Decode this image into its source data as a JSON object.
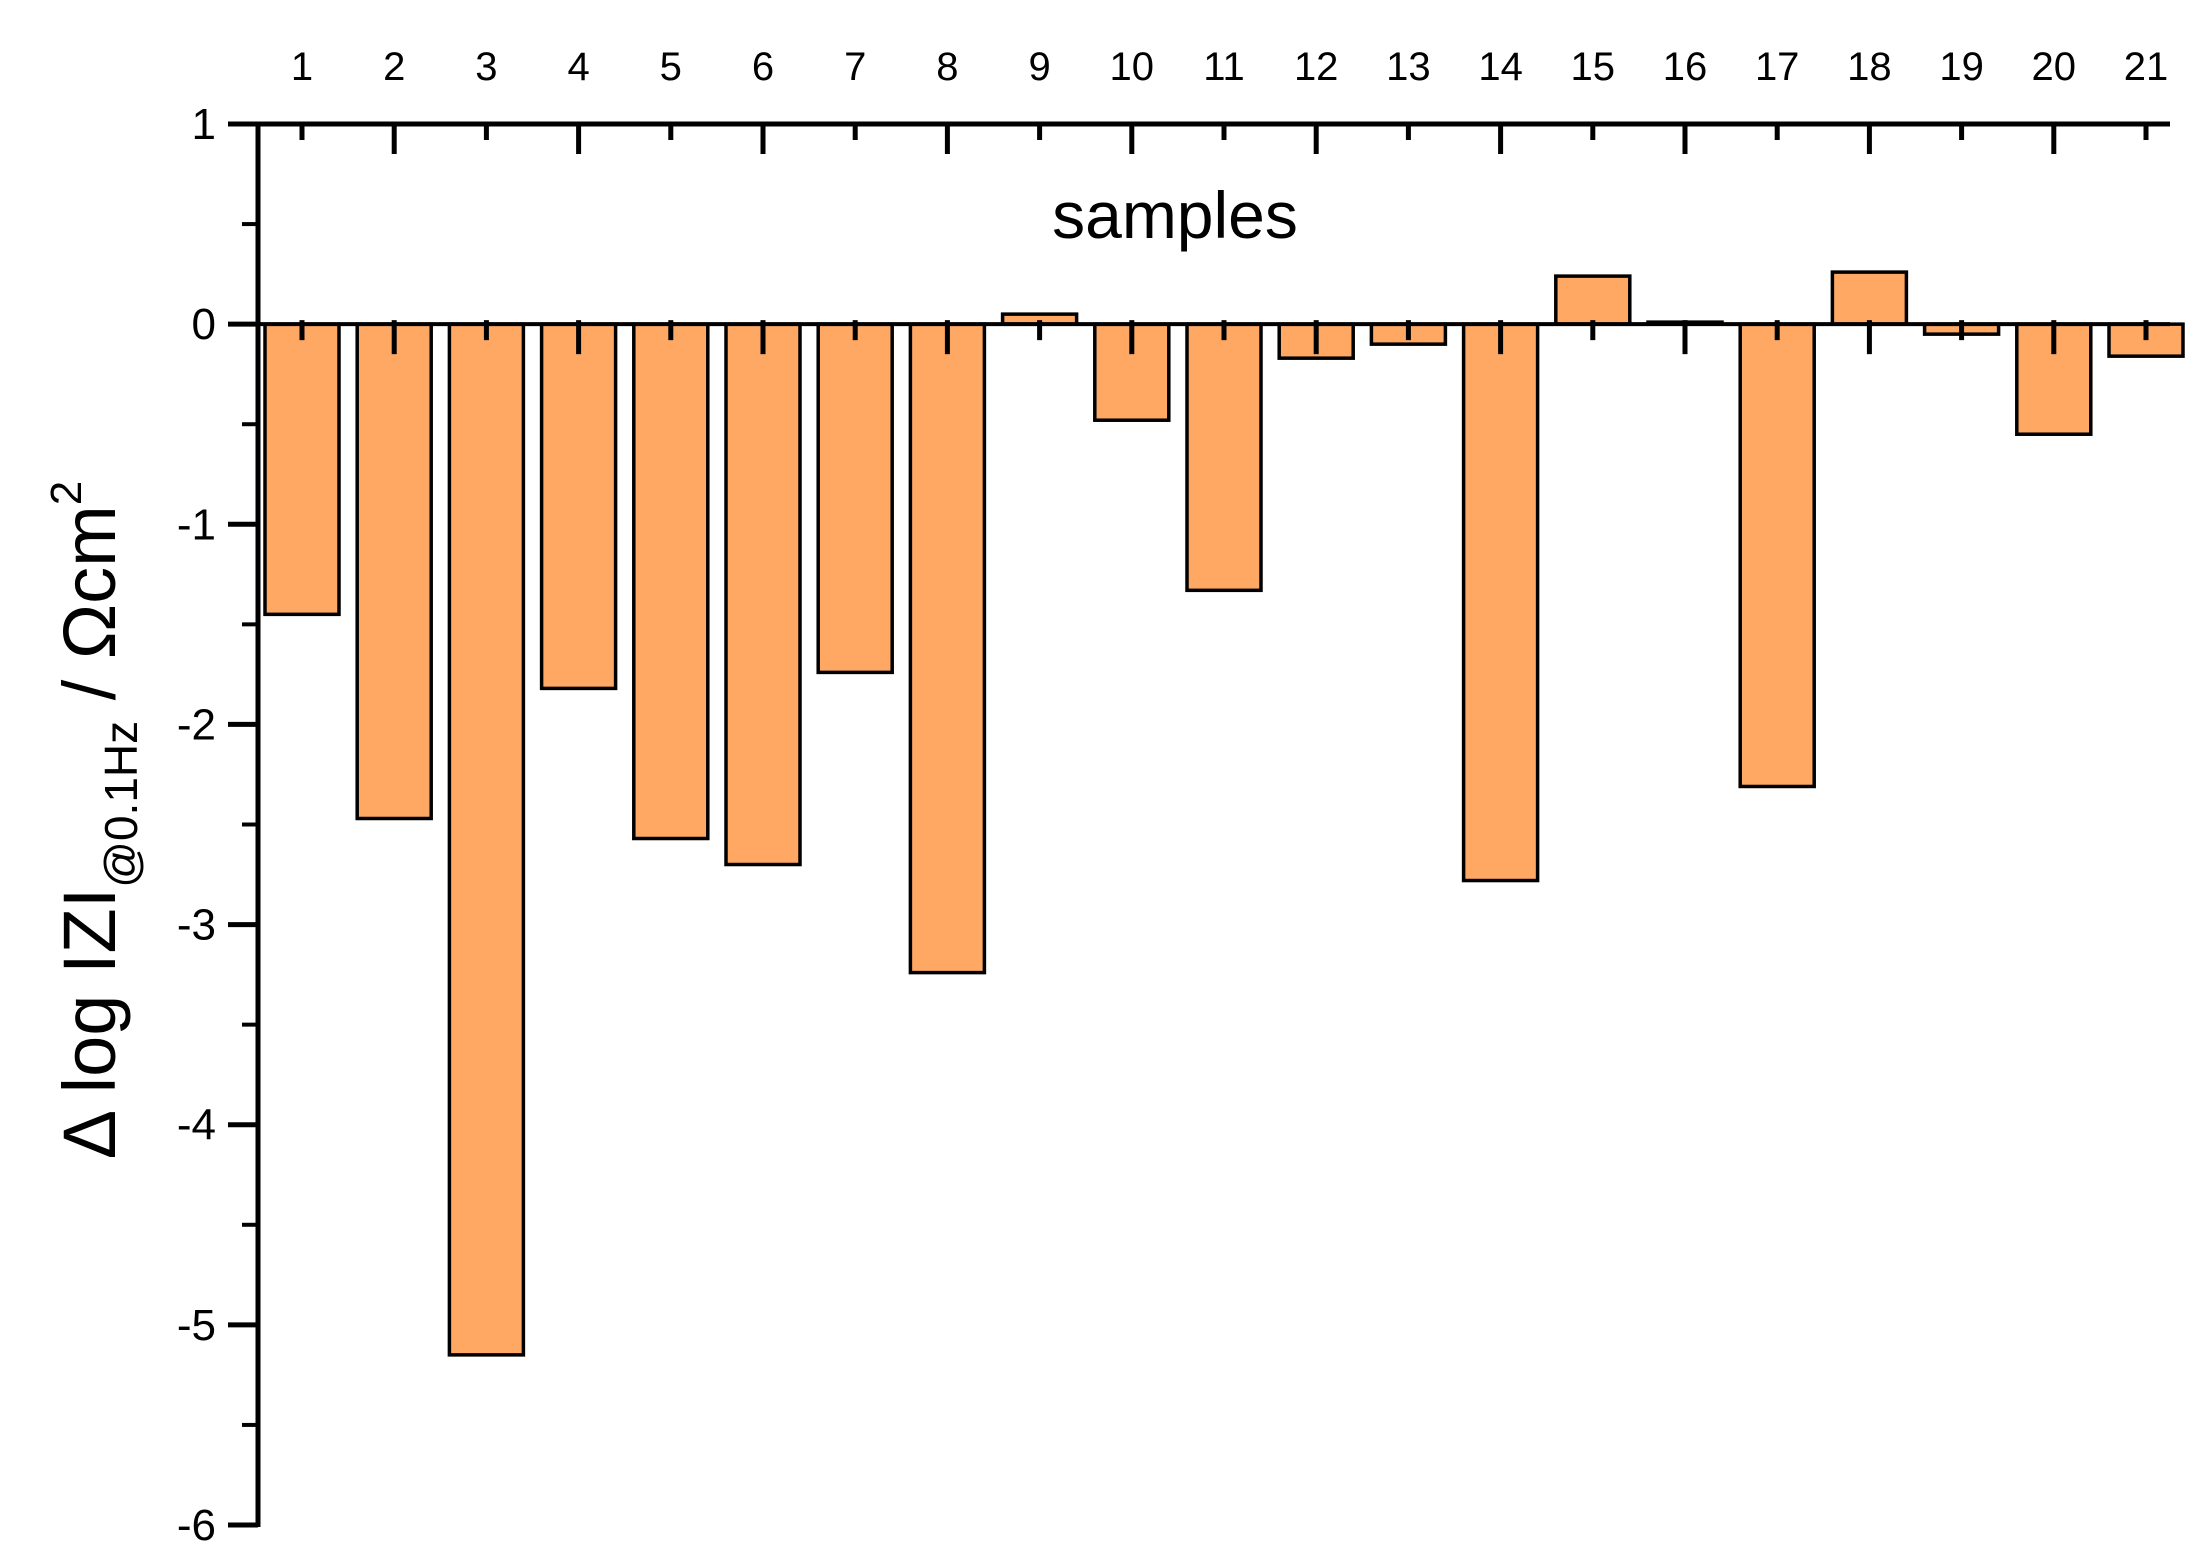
{
  "chart_data": {
    "type": "bar",
    "title": "",
    "xlabel": "samples",
    "ylabel": {
      "main": "Δ log IZI",
      "subscript": "@0.1Hz",
      "unit": " / Ωcm",
      "superscript": "2"
    },
    "categories": [
      "1",
      "2",
      "3",
      "4",
      "5",
      "6",
      "7",
      "8",
      "9",
      "10",
      "11",
      "12",
      "13",
      "14",
      "15",
      "16",
      "17",
      "18",
      "19",
      "20",
      "21"
    ],
    "values": [
      -1.45,
      -2.47,
      -5.15,
      -1.82,
      -2.57,
      -2.7,
      -1.74,
      -3.24,
      0.05,
      -0.48,
      -1.33,
      -0.17,
      -0.1,
      -2.78,
      0.24,
      0.01,
      -2.31,
      0.26,
      -0.05,
      -0.55,
      -0.16
    ],
    "yticks": [
      "1",
      "0",
      "-1",
      "-2",
      "-3",
      "-4",
      "-5",
      "-6"
    ],
    "ylim": [
      -6,
      1
    ],
    "x_axis_position": "top",
    "grid": false,
    "colors": {
      "bar_fill": "#FFA864",
      "bar_stroke": "#000000",
      "axis": "#000000"
    }
  }
}
